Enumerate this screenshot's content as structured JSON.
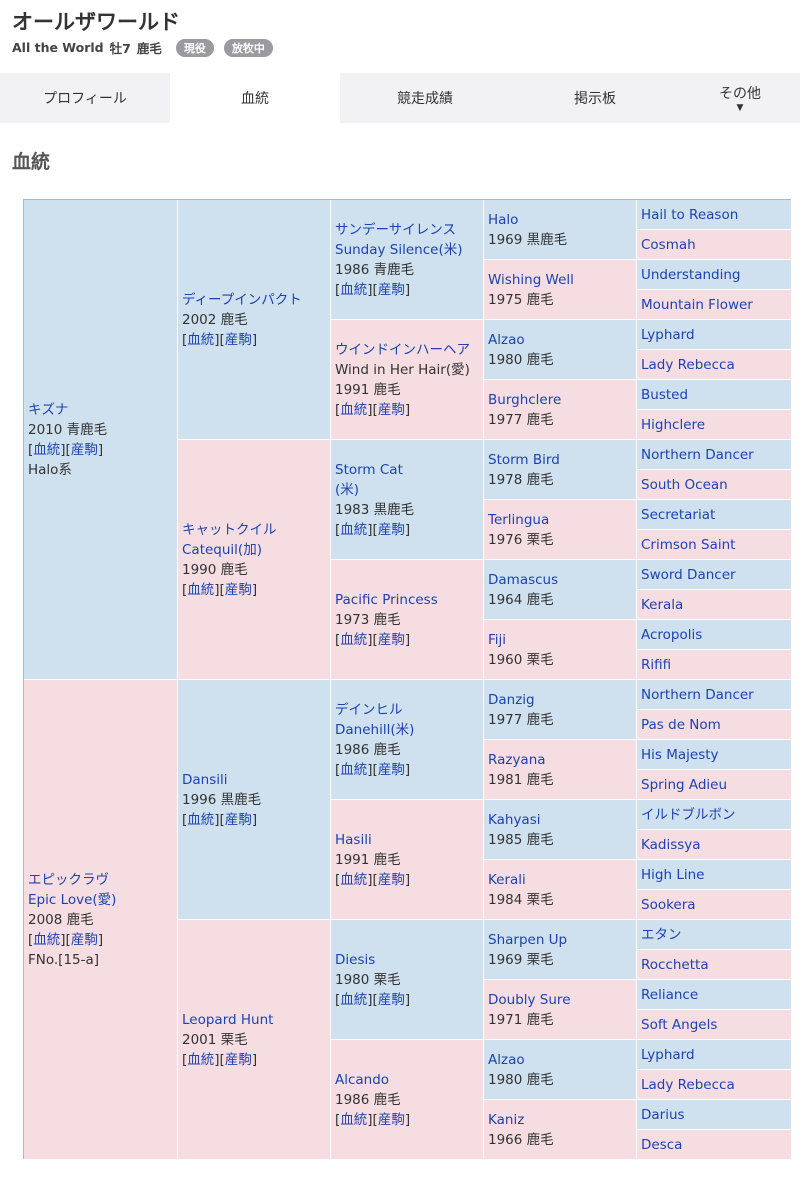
{
  "header": {
    "title": "オールザワールド",
    "name_en": "All the World",
    "sex_age": "牡7",
    "color": "鹿毛",
    "badges": [
      "現役",
      "放牧中"
    ]
  },
  "tabs": [
    {
      "label": "プロフィール"
    },
    {
      "label": "血統",
      "active": true
    },
    {
      "label": "競走成績"
    },
    {
      "label": "掲示板"
    },
    {
      "label": "その他",
      "arrow": "▼"
    }
  ],
  "section_title": "血統",
  "link_labels": {
    "pedigree": "血統",
    "progeny": "産駒"
  },
  "colors": {
    "male": "#cfe0ef",
    "female": "#f5dde2",
    "link": "#1d43b0"
  },
  "pedigree": {
    "gen1": [
      {
        "name": "キズナ",
        "info": "2010 青鹿毛",
        "links": true,
        "extra": "Halo系"
      },
      {
        "name": "エピックラヴ",
        "name2": "Epic Love(愛)",
        "info": "2008 鹿毛",
        "links": true,
        "extra": "FNo.[15-a]"
      }
    ],
    "gen2": [
      {
        "name": "ディープインパクト",
        "info": "2002 鹿毛",
        "links": true
      },
      {
        "name": "キャットクイル",
        "name2": "Catequil(加)",
        "info": "1990 鹿毛",
        "links": true
      },
      {
        "name": "Dansili",
        "info": "1996 黒鹿毛",
        "links": true
      },
      {
        "name": "Leopard Hunt",
        "info": "2001 栗毛",
        "links": true
      }
    ],
    "gen3": [
      {
        "name": "サンデーサイレンス",
        "name2": "Sunday Silence(米)",
        "info": "1986 青鹿毛",
        "links": true
      },
      {
        "name": "ウインドインハーヘア",
        "plain2": "Wind in Her Hair(愛)",
        "info": "1991 鹿毛",
        "links": true
      },
      {
        "name": "Storm Cat",
        "name2": "(米)",
        "info": "1983 黒鹿毛",
        "links": true
      },
      {
        "name": "Pacific Princess",
        "info": "1973 鹿毛",
        "links": true
      },
      {
        "name": "デインヒル",
        "name2": "Danehill(米)",
        "info": "1986 鹿毛",
        "links": true
      },
      {
        "name": "Hasili",
        "info": "1991 鹿毛",
        "links": true
      },
      {
        "name": "Diesis",
        "info": "1980 栗毛",
        "links": true
      },
      {
        "name": "Alcando",
        "info": "1986 鹿毛",
        "links": true
      }
    ],
    "gen4": [
      {
        "name": "Halo",
        "info": "1969 黒鹿毛"
      },
      {
        "name": "Wishing Well",
        "info": "1975 鹿毛"
      },
      {
        "name": "Alzao",
        "info": "1980 鹿毛"
      },
      {
        "name": "Burghclere",
        "info": "1977 鹿毛"
      },
      {
        "name": "Storm Bird",
        "info": "1978 鹿毛"
      },
      {
        "name": "Terlingua",
        "info": "1976 栗毛"
      },
      {
        "name": "Damascus",
        "info": "1964 鹿毛"
      },
      {
        "name": "Fiji",
        "info": "1960 栗毛"
      },
      {
        "name": "Danzig",
        "info": "1977 鹿毛"
      },
      {
        "name": "Razyana",
        "info": "1981 鹿毛"
      },
      {
        "name": "Kahyasi",
        "info": "1985 鹿毛"
      },
      {
        "name": "Kerali",
        "info": "1984 栗毛"
      },
      {
        "name": "Sharpen Up",
        "info": "1969 栗毛"
      },
      {
        "name": "Doubly Sure",
        "info": "1971 鹿毛"
      },
      {
        "name": "Alzao",
        "info": "1980 鹿毛"
      },
      {
        "name": "Kaniz",
        "info": "1966 鹿毛"
      }
    ],
    "gen5": [
      "Hail to Reason",
      "Cosmah",
      "Understanding",
      "Mountain Flower",
      "Lyphard",
      "Lady Rebecca",
      "Busted",
      "Highclere",
      "Northern Dancer",
      "South Ocean",
      "Secretariat",
      "Crimson Saint",
      "Sword Dancer",
      "Kerala",
      "Acropolis",
      "Rififi",
      "Northern Dancer",
      "Pas de Nom",
      "His Majesty",
      "Spring Adieu",
      "イルドブルボン",
      "Kadissya",
      "High Line",
      "Sookera",
      "エタン",
      "Rocchetta",
      "Reliance",
      "Soft Angels",
      "Lyphard",
      "Lady Rebecca",
      "Darius",
      "Desca"
    ]
  }
}
